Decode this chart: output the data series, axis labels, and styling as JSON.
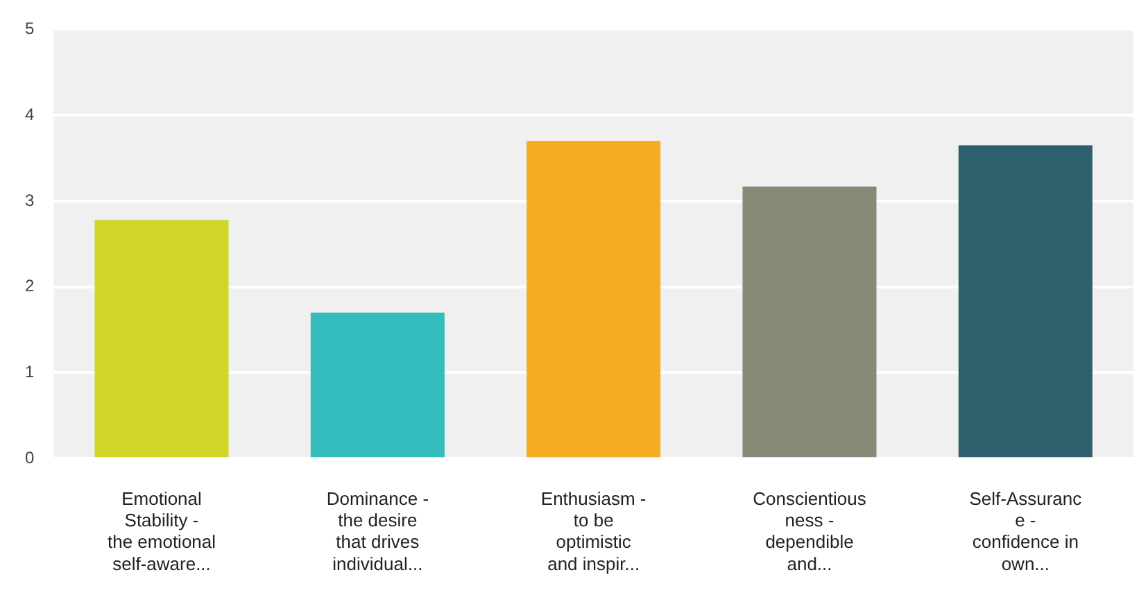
{
  "chart_data": {
    "type": "bar",
    "categories": [
      "Emotional\nStability -\nthe emotional\nself-aware...",
      "Dominance -\nthe desire\nthat drives\nindividual...",
      "Enthusiasm -\nto be\noptimistic\nand inspir...",
      "Conscientious\nness -\ndependible\nand...",
      "Self-Assuranc\ne -\nconfidence in\nown..."
    ],
    "values": [
      2.78,
      1.7,
      3.7,
      3.17,
      3.65
    ],
    "colors": [
      "#d0d628",
      "#34bcbf",
      "#f5ac22",
      "#888a78",
      "#2d5f6c"
    ],
    "ylim": [
      0,
      5
    ],
    "yticks": [
      0,
      1,
      2,
      3,
      4,
      5
    ],
    "grid": "y",
    "legend": false
  }
}
